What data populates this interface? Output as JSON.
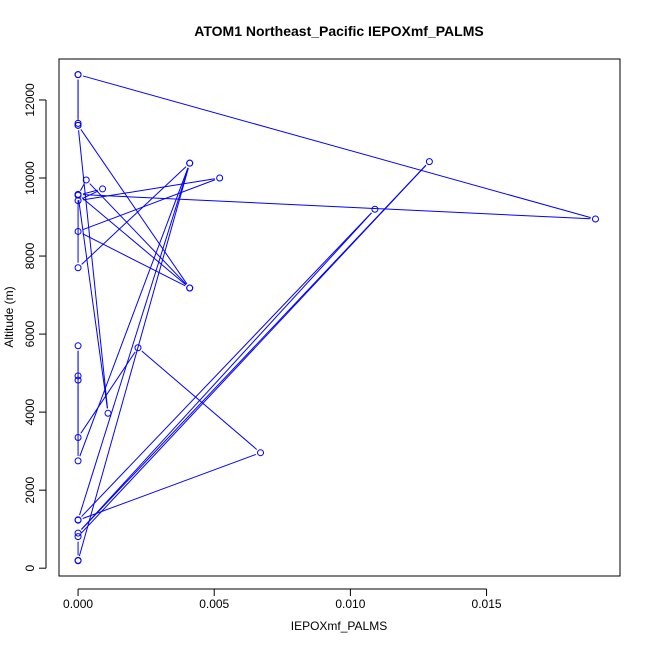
{
  "chart_data": {
    "type": "line",
    "title": "ATOM1 Northeast_Pacific IEPOXmf_PALMS",
    "xlabel": "IEPOXmf_PALMS",
    "ylabel": "Altitude (m)",
    "xlim": [
      -0.0007,
      0.0199
    ],
    "ylim": [
      -200,
      13050
    ],
    "x_ticks": [
      0.0,
      0.005,
      0.01,
      0.015
    ],
    "x_tick_labels": [
      "0.000",
      "0.005",
      "0.010",
      "0.015"
    ],
    "y_ticks": [
      0,
      2000,
      4000,
      6000,
      8000,
      10000,
      12000
    ],
    "y_tick_labels": [
      "0",
      "2000",
      "4000",
      "6000",
      "8000",
      "10000",
      "12000"
    ],
    "colors": {
      "series": "#0000ff",
      "frame": "#000000"
    },
    "series": [
      {
        "marker": "open-circle",
        "points": [
          {
            "x": 0.0,
            "y": 12650
          },
          {
            "x": 0.0,
            "y": 11400
          },
          {
            "x": 0.0,
            "y": 11350
          },
          {
            "x": 0.0041,
            "y": 7180
          },
          {
            "x": 0.0,
            "y": 9580
          },
          {
            "x": 0.019,
            "y": 8950
          },
          {
            "x": 0.0,
            "y": 12650
          },
          {
            "x": 0.0,
            "y": 11350
          },
          {
            "x": 0.0011,
            "y": 3970
          },
          {
            "x": 0.0,
            "y": 9560
          },
          {
            "x": 0.0003,
            "y": 9950
          },
          {
            "x": 0.0041,
            "y": 7180
          },
          {
            "x": 0.0,
            "y": 8630
          },
          {
            "x": 0.0052,
            "y": 10000
          },
          {
            "x": 0.0,
            "y": 9420
          },
          {
            "x": 0.0009,
            "y": 9720
          },
          {
            "x": 0.0,
            "y": 9560
          },
          {
            "x": 0.0,
            "y": 7700
          },
          {
            "x": 0.0041,
            "y": 10380
          },
          {
            "x": 0.0,
            "y": 2750
          },
          {
            "x": 0.0,
            "y": 5700
          },
          {
            "x": 0.0,
            "y": 4930
          },
          {
            "x": 0.0,
            "y": 4820
          },
          {
            "x": 0.0,
            "y": 3350
          },
          {
            "x": 0.0022,
            "y": 5650
          },
          {
            "x": 0.0067,
            "y": 2960
          },
          {
            "x": 0.0,
            "y": 1230
          },
          {
            "x": 0.0109,
            "y": 9200
          },
          {
            "x": 0.0,
            "y": 900
          },
          {
            "x": 0.0129,
            "y": 10420
          },
          {
            "x": 0.0,
            "y": 810
          },
          {
            "x": 0.0,
            "y": 200
          },
          {
            "x": 0.0,
            "y": 190
          },
          {
            "x": 0.0041,
            "y": 10380
          },
          {
            "x": 0.0,
            "y": 1240
          }
        ]
      }
    ]
  }
}
